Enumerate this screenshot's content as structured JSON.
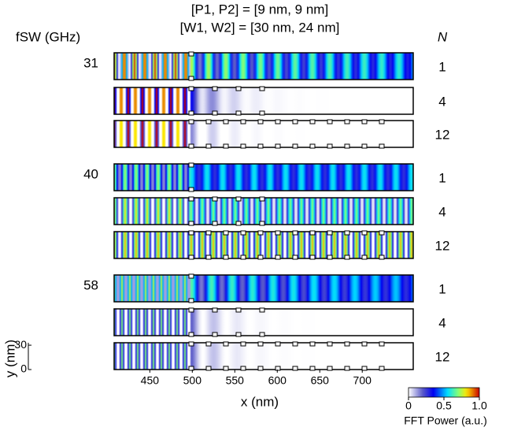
{
  "header": {
    "line1": "[P1, P2] = [9 nm, 9 nm]",
    "line2": "[W1, W2] = [30 nm, 24 nm]"
  },
  "left_label": "fSW (GHz)",
  "right_label": "N",
  "groups": [
    {
      "frequency": "31",
      "N": [
        "1",
        "4",
        "12"
      ]
    },
    {
      "frequency": "40",
      "N": [
        "1",
        "4",
        "12"
      ]
    },
    {
      "frequency": "58",
      "N": [
        "1",
        "4",
        "12"
      ]
    }
  ],
  "x_axis": {
    "label": "x (nm)",
    "xlim": [
      408,
      760
    ],
    "xticks": [
      450,
      500,
      550,
      600,
      650,
      700
    ]
  },
  "y_axis": {
    "label": "y (nm)",
    "ylim": [
      0,
      33
    ],
    "yticks": [
      0,
      30
    ]
  },
  "colorbar": {
    "label": "FFT Power (a.u.)",
    "lim": [
      0,
      1
    ],
    "ticks": [
      0,
      0.5,
      {
        "value": 1,
        "label": "1.0"
      }
    ]
  }
}
